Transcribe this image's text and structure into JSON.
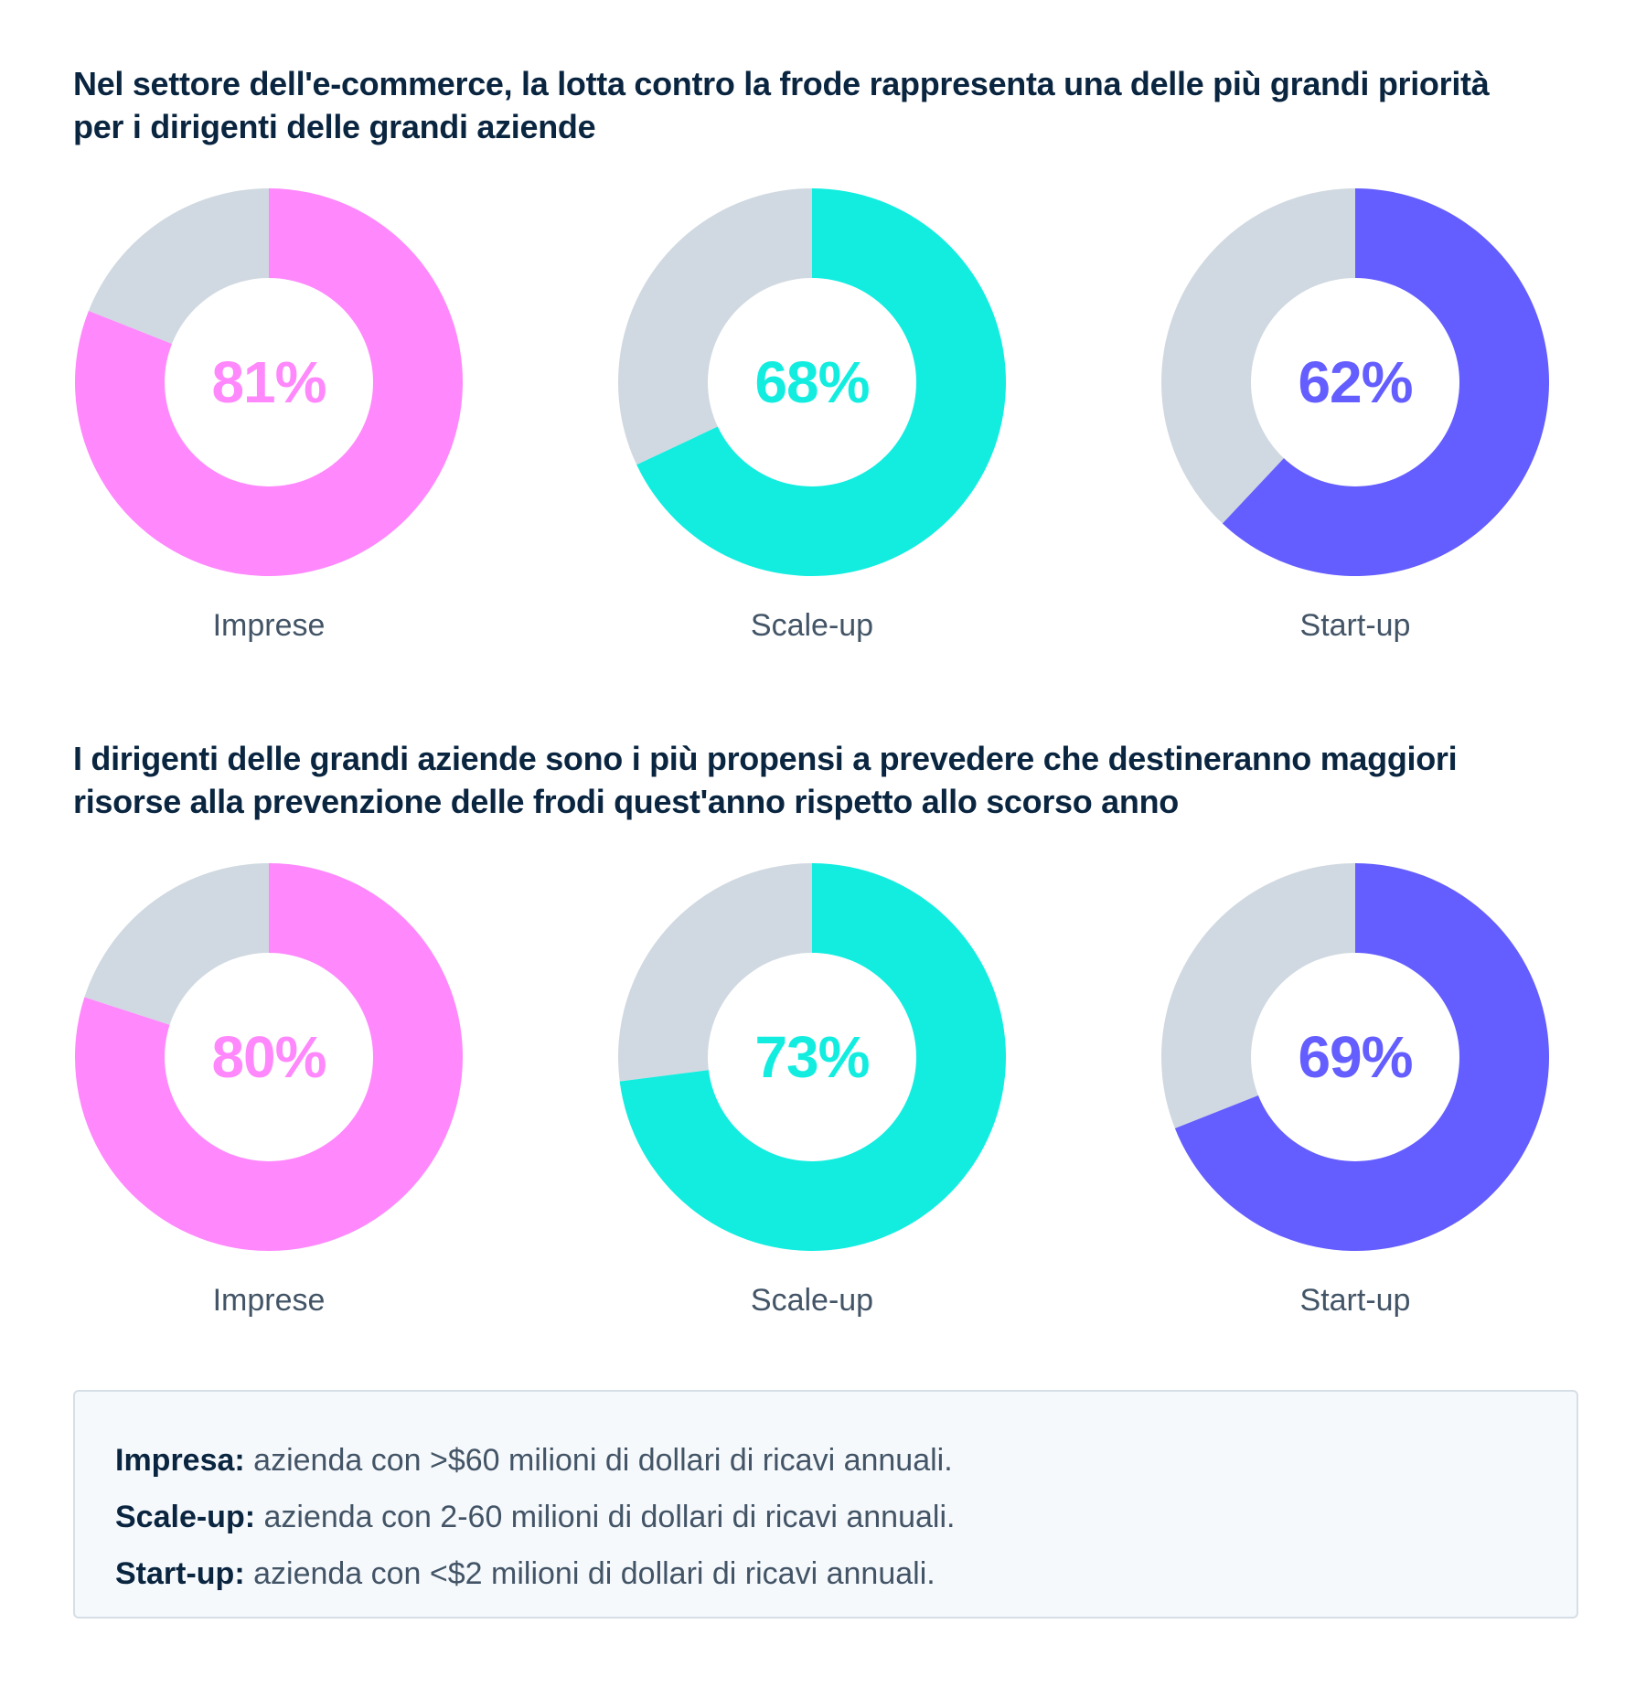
{
  "colors": {
    "impresa": "#ff88fc",
    "scaleup": "#12ede0",
    "startup": "#645dff",
    "remainder": "#d0d9e1",
    "heading": "#0a2540",
    "label": "#425466"
  },
  "chart_data": [
    {
      "type": "pie",
      "title": "Nel settore dell'e-commerce, la lotta contro la frode rappresenta una delle più grandi priorità per i dirigenti delle grandi aziende",
      "categories": [
        "Imprese",
        "Scale-up",
        "Start-up"
      ],
      "values": [
        81,
        68,
        62
      ],
      "value_labels": [
        "81%",
        "68%",
        "62%"
      ],
      "series_colors": [
        "#ff88fc",
        "#12ede0",
        "#645dff"
      ],
      "max": 100
    },
    {
      "type": "pie",
      "title": "I dirigenti delle grandi aziende sono i più propensi a prevedere che destineranno maggiori risorse alla prevenzione delle frodi quest'anno rispetto allo scorso anno",
      "categories": [
        "Imprese",
        "Scale-up",
        "Start-up"
      ],
      "values": [
        80,
        73,
        69
      ],
      "value_labels": [
        "80%",
        "73%",
        "69%"
      ],
      "series_colors": [
        "#ff88fc",
        "#12ede0",
        "#645dff"
      ],
      "max": 100
    }
  ],
  "legend": [
    {
      "term": "Impresa:",
      "definition": " azienda con >$60 milioni di dollari di ricavi annuali."
    },
    {
      "term": "Scale-up:",
      "definition": " azienda con 2-60 milioni di dollari di ricavi annuali."
    },
    {
      "term": "Start-up:",
      "definition": " azienda con <$2 milioni di dollari di ricavi annuali."
    }
  ]
}
